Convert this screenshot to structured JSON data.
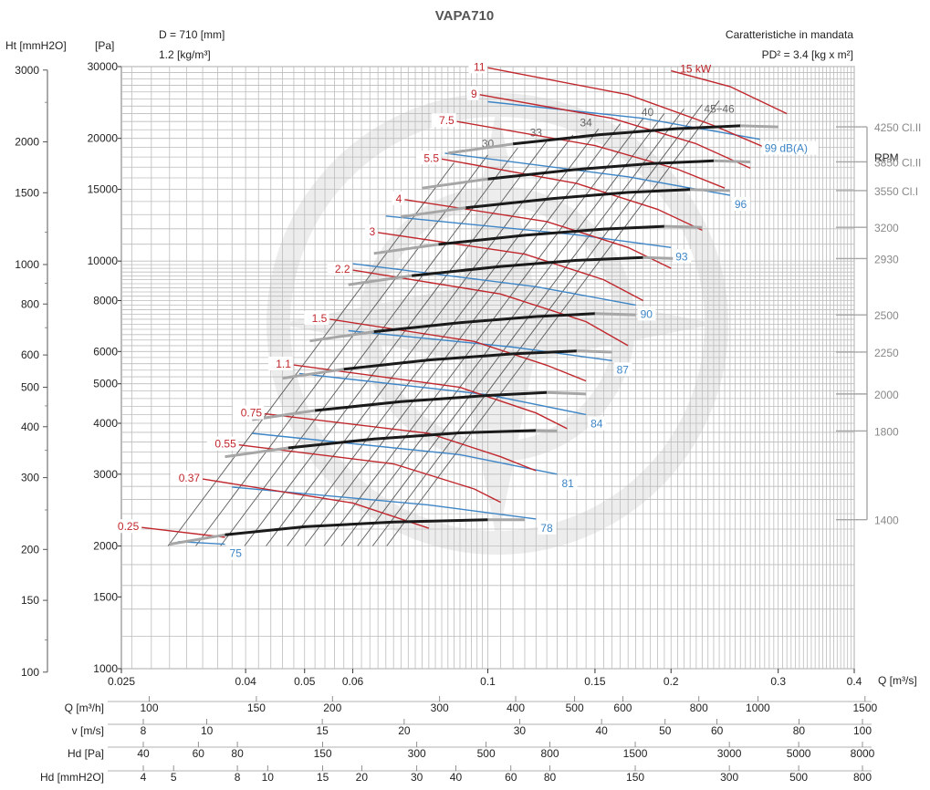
{
  "header": {
    "title": "VAPA710",
    "diameter": "D = 710 [mm]",
    "density": "1.2 [kg/m³]",
    "ht_unit": "Ht [mmH2O]",
    "pa_unit": "[Pa]",
    "char": "Caratteristiche in mandata",
    "pd2": "PD² = 3.4 [kg x m²]",
    "q_unit": "Q [m³/s]",
    "rpm_heading": "RPM"
  },
  "chart_data": {
    "type": "line",
    "title": "VAPA710",
    "xlabel": "Q [m³/s]",
    "ylabel": "[Pa]",
    "x_scale": "log",
    "y_scale": "log",
    "xlim": [
      0.025,
      0.4
    ],
    "ylim": [
      1000,
      30000
    ],
    "x_ticks": [
      0.025,
      0.04,
      0.05,
      0.06,
      0.1,
      0.15,
      0.2,
      0.3,
      0.4
    ],
    "x_tick_labels": [
      "0.025",
      "0.04",
      "0.05",
      "0.06",
      "0.1",
      "0.15",
      "0.2",
      "0.3",
      "0.4"
    ],
    "pa_ticks": [
      1000,
      1500,
      2000,
      3000,
      4000,
      5000,
      6000,
      8000,
      10000,
      15000,
      20000,
      30000
    ],
    "pa_tick_labels": [
      "1000",
      "1500",
      "2000",
      "3000",
      "4000",
      "5000",
      "6000",
      "8000",
      "10000",
      "15000",
      "20000",
      "30000"
    ],
    "mm_ticks": [
      100,
      150,
      200,
      300,
      400,
      500,
      600,
      800,
      1000,
      1500,
      2000,
      3000
    ],
    "mm_tick_labels": [
      "100",
      "150",
      "200",
      "300",
      "400",
      "500",
      "600",
      "800",
      "1000",
      "1500",
      "2000",
      "3000"
    ],
    "grid": true,
    "rpm_series": [
      {
        "name": "1400",
        "x": [
          0.03,
          0.037,
          0.05,
          0.07,
          0.1,
          0.115
        ],
        "y": [
          2020,
          2130,
          2230,
          2290,
          2320,
          2320
        ]
      },
      {
        "name": "1800",
        "x": [
          0.037,
          0.047,
          0.065,
          0.09,
          0.12,
          0.13
        ],
        "y": [
          3310,
          3480,
          3660,
          3790,
          3840,
          3830
        ]
      },
      {
        "name": "2000",
        "x": [
          0.041,
          0.052,
          0.072,
          0.1,
          0.125,
          0.145
        ],
        "y": [
          4080,
          4300,
          4520,
          4680,
          4760,
          4720
        ]
      },
      {
        "name": "2250",
        "x": [
          0.046,
          0.058,
          0.08,
          0.11,
          0.14,
          0.16
        ],
        "y": [
          5160,
          5430,
          5720,
          5920,
          6020,
          5980
        ]
      },
      {
        "name": "2500",
        "x": [
          0.051,
          0.065,
          0.09,
          0.12,
          0.15,
          0.175
        ],
        "y": [
          6370,
          6710,
          7060,
          7310,
          7430,
          7380
        ]
      },
      {
        "name": "2930",
        "x": [
          0.059,
          0.075,
          0.105,
          0.14,
          0.18,
          0.205
        ],
        "y": [
          8750,
          9210,
          9700,
          10040,
          10200,
          10140
        ]
      },
      {
        "name": "3200",
        "x": [
          0.065,
          0.083,
          0.115,
          0.155,
          0.195,
          0.225
        ],
        "y": [
          10440,
          10990,
          11570,
          11980,
          12170,
          12100
        ]
      },
      {
        "name": "3550",
        "x": [
          0.072,
          0.092,
          0.128,
          0.17,
          0.215,
          0.25
        ],
        "y": [
          12840,
          13520,
          14240,
          14740,
          14980,
          14890
        ]
      },
      {
        "name": "3850 Cl.II",
        "x": [
          0.078,
          0.1,
          0.138,
          0.185,
          0.235,
          0.27
        ],
        "y": [
          15100,
          15900,
          16750,
          17340,
          17620,
          17510
        ]
      },
      {
        "name": "4250 Cl.II",
        "x": [
          0.086,
          0.11,
          0.152,
          0.205,
          0.26,
          0.3
        ],
        "y": [
          18400,
          19380,
          20410,
          21130,
          21470,
          21340
        ]
      }
    ],
    "rpm_label_values": [
      21340,
      17510,
      14890,
      12100,
      10140,
      7380,
      5980,
      4720,
      3830,
      2320
    ],
    "rpm_labels": [
      "4250 Cl.II",
      "3850 Cl.II",
      "3550 Cl.I",
      "3200",
      "2930",
      "2500",
      "2250",
      "2000",
      "1800",
      "1400"
    ],
    "power_series": [
      {
        "name": "0.25",
        "x": [
          0.027,
          0.037
        ],
        "y": [
          2220,
          2100
        ]
      },
      {
        "name": "0.37",
        "x": [
          0.034,
          0.06,
          0.08
        ],
        "y": [
          2920,
          2550,
          2210
        ]
      },
      {
        "name": "0.55",
        "x": [
          0.039,
          0.07,
          0.095,
          0.105
        ],
        "y": [
          3540,
          3180,
          2760,
          2560
        ]
      },
      {
        "name": "0.75",
        "x": [
          0.043,
          0.08,
          0.105,
          0.12
        ],
        "y": [
          4220,
          3780,
          3310,
          3060
        ]
      },
      {
        "name": "1.1",
        "x": [
          0.048,
          0.09,
          0.12,
          0.135
        ],
        "y": [
          5560,
          4900,
          4240,
          3880
        ]
      },
      {
        "name": "1.5",
        "x": [
          0.055,
          0.095,
          0.125,
          0.145
        ],
        "y": [
          7200,
          6350,
          5550,
          5080
        ]
      },
      {
        "name": "2.2",
        "x": [
          0.06,
          0.105,
          0.145,
          0.17
        ],
        "y": [
          9500,
          8300,
          7100,
          6200
        ]
      },
      {
        "name": "3",
        "x": [
          0.066,
          0.115,
          0.155,
          0.18
        ],
        "y": [
          11750,
          10400,
          9000,
          8000
        ]
      },
      {
        "name": "4",
        "x": [
          0.073,
          0.125,
          0.17,
          0.2
        ],
        "y": [
          14150,
          12500,
          10800,
          9600
        ]
      },
      {
        "name": "5.5",
        "x": [
          0.084,
          0.14,
          0.19,
          0.225
        ],
        "y": [
          17800,
          15500,
          13400,
          11900
        ]
      },
      {
        "name": "7.5",
        "x": [
          0.089,
          0.15,
          0.205,
          0.245
        ],
        "y": [
          22000,
          19200,
          16800,
          15100
        ]
      },
      {
        "name": "9",
        "x": [
          0.097,
          0.16,
          0.22,
          0.27
        ],
        "y": [
          25600,
          22400,
          19400,
          16900
        ]
      },
      {
        "name": "11",
        "x": [
          0.1,
          0.17,
          0.235,
          0.29
        ],
        "y": [
          29800,
          25600,
          21500,
          18800
        ]
      },
      {
        "name": "15 kW",
        "x": [
          0.2,
          0.25,
          0.31
        ],
        "y": [
          29300,
          26800,
          23000
        ]
      }
    ],
    "noise_series": [
      {
        "name": "75",
        "x": [
          0.031,
          0.037
        ],
        "y": [
          2050,
          2020
        ]
      },
      {
        "name": "78",
        "x": [
          0.038,
          0.08,
          0.12
        ],
        "y": [
          2790,
          2520,
          2330
        ]
      },
      {
        "name": "81",
        "x": [
          0.041,
          0.09,
          0.13
        ],
        "y": [
          3780,
          3350,
          3000
        ]
      },
      {
        "name": "84",
        "x": [
          0.049,
          0.1,
          0.145
        ],
        "y": [
          5300,
          4700,
          4200
        ]
      },
      {
        "name": "87",
        "x": [
          0.059,
          0.11,
          0.16
        ],
        "y": [
          6750,
          6150,
          5700
        ]
      },
      {
        "name": "90",
        "x": [
          0.06,
          0.12,
          0.175
        ],
        "y": [
          9850,
          8650,
          7800
        ]
      },
      {
        "name": "93",
        "x": [
          0.068,
          0.14,
          0.2
        ],
        "y": [
          12900,
          11600,
          10800
        ]
      },
      {
        "name": "96",
        "x": [
          0.085,
          0.17,
          0.25
        ],
        "y": [
          18400,
          16100,
          14500
        ]
      },
      {
        "name": "99 dB(A)",
        "x": [
          0.1,
          0.18,
          0.28
        ],
        "y": [
          24600,
          22400,
          19900
        ]
      }
    ],
    "efficiency_labels": [
      {
        "label": "30",
        "x": 0.1,
        "y": 19000
      },
      {
        "label": "33",
        "x": 0.12,
        "y": 20200
      },
      {
        "label": "34",
        "x": 0.145,
        "y": 21400
      },
      {
        "label": "40",
        "x": 0.183,
        "y": 22700
      },
      {
        "label": "45÷46",
        "x": 0.24,
        "y": 23100
      }
    ]
  },
  "bottom_scales": [
    {
      "label": "Q [m³/h]",
      "labels": [
        "100",
        "150",
        "200",
        "300",
        "400",
        "500",
        "600",
        "800",
        "1000",
        "1500"
      ],
      "values": [
        100,
        150,
        200,
        300,
        400,
        500,
        600,
        800,
        1000,
        1500
      ]
    },
    {
      "label": "v [m/s]",
      "labels": [
        "8",
        "10",
        "15",
        "20",
        "30",
        "40",
        "50",
        "60",
        "80",
        "100"
      ],
      "values": [
        8,
        10,
        15,
        20,
        30,
        40,
        50,
        60,
        80,
        100
      ]
    },
    {
      "label": "Hd [Pa]",
      "labels": [
        "40",
        "60",
        "80",
        "150",
        "300",
        "500",
        "800",
        "1500",
        "3000",
        "5000",
        "8000"
      ],
      "values": [
        40,
        60,
        80,
        150,
        300,
        500,
        800,
        1500,
        3000,
        5000,
        8000
      ]
    },
    {
      "label": "Hd [mmH2O]",
      "labels": [
        "4",
        "5",
        "8",
        "10",
        "15",
        "20",
        "30",
        "40",
        "60",
        "80",
        "150",
        "300",
        "500",
        "800"
      ],
      "values": [
        4,
        5,
        8,
        10,
        15,
        20,
        30,
        40,
        60,
        80,
        150,
        300,
        500,
        800
      ]
    }
  ],
  "colors": {
    "rpm_curve": "#1a1a1a",
    "rpm_tail": "#a6a6a6",
    "power": "#c0272d",
    "noise": "#3d85c6",
    "efficiency": "#555555",
    "grid": "#bcbcbc",
    "rpm_label": "#888888"
  }
}
